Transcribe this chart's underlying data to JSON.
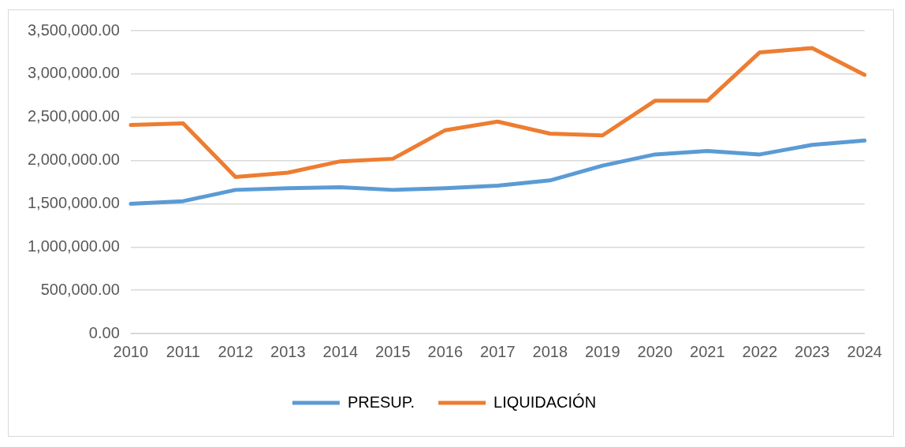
{
  "chart_data": {
    "type": "line",
    "categories": [
      "2010",
      "2011",
      "2012",
      "2013",
      "2014",
      "2015",
      "2016",
      "2017",
      "2018",
      "2019",
      "2020",
      "2021",
      "2022",
      "2023",
      "2024"
    ],
    "series": [
      {
        "name": "PRESUP.",
        "color": "#5b9bd5",
        "values": [
          1500000,
          1530000,
          1660000,
          1680000,
          1690000,
          1660000,
          1680000,
          1710000,
          1770000,
          1940000,
          2070000,
          2110000,
          2070000,
          2180000,
          2230000
        ]
      },
      {
        "name": "LIQUIDACIÓN",
        "color": "#ed7d31",
        "values": [
          2410000,
          2430000,
          1810000,
          1860000,
          1990000,
          2020000,
          2350000,
          2450000,
          2310000,
          2290000,
          2690000,
          2690000,
          3250000,
          3300000,
          2990000
        ]
      }
    ],
    "ylim": [
      0,
      3500000
    ],
    "yticks": [
      {
        "value": 0,
        "label": "0.00"
      },
      {
        "value": 500000,
        "label": "500,000.00"
      },
      {
        "value": 1000000,
        "label": "1,000,000.00"
      },
      {
        "value": 1500000,
        "label": "1,500,000.00"
      },
      {
        "value": 2000000,
        "label": "2,000,000.00"
      },
      {
        "value": 2500000,
        "label": "2,500,000.00"
      },
      {
        "value": 3000000,
        "label": "3,000,000.00"
      },
      {
        "value": 3500000,
        "label": "3,500,000.00"
      }
    ],
    "grid": "y",
    "legend": "bottom",
    "marker": "none",
    "line_style": "solid"
  }
}
